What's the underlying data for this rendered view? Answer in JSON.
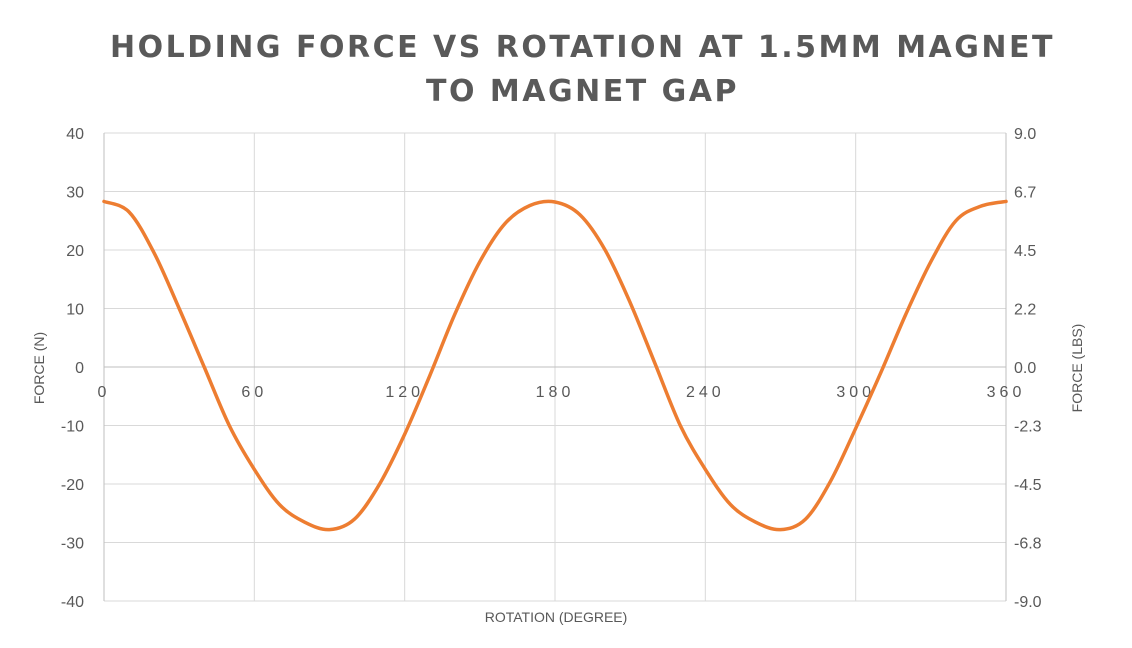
{
  "chart_data": {
    "type": "line",
    "title_line1": "HOLDING FORCE VS ROTATION AT 1.5MM MAGNET",
    "title_line2": "TO MAGNET GAP",
    "xlabel": "ROTATION (DEGREE)",
    "ylabel": "FORCE (N)",
    "y2label": "FORCE (LBS)",
    "xlim": [
      0,
      360
    ],
    "ylim": [
      -40,
      40
    ],
    "x_ticks": [
      "0",
      "60",
      "120",
      "180",
      "240",
      "300",
      "360"
    ],
    "y_ticks": [
      "40",
      "30",
      "20",
      "10",
      "0",
      "-10",
      "-20",
      "-30",
      "-40"
    ],
    "y2_ticks": [
      "9.0",
      "6.7",
      "4.5",
      "2.2",
      "0.0",
      "-2.3",
      "-4.5",
      "-6.8",
      "-9.0"
    ],
    "grid": true,
    "line_color": "#ED7D31",
    "series": [
      {
        "x": [
          0,
          10,
          20,
          30,
          40,
          50,
          60,
          70,
          80,
          90,
          100,
          110,
          120,
          130,
          140,
          150,
          160,
          170,
          180,
          190,
          200,
          210,
          220,
          230,
          240,
          250,
          260,
          270,
          280,
          290,
          300,
          310,
          320,
          330,
          340,
          350,
          360
        ],
        "values": [
          28.3,
          26.5,
          19.5,
          10.0,
          0.0,
          -10.0,
          -17.5,
          -23.5,
          -26.5,
          -27.8,
          -26.0,
          -20.0,
          -11.5,
          -1.5,
          9.0,
          18.0,
          24.5,
          27.6,
          28.2,
          26.0,
          20.0,
          11.0,
          0.5,
          -10.0,
          -17.5,
          -23.5,
          -26.5,
          -27.8,
          -26.0,
          -19.5,
          -10.5,
          -1.0,
          9.0,
          18.0,
          25.0,
          27.5,
          28.3
        ]
      }
    ]
  }
}
